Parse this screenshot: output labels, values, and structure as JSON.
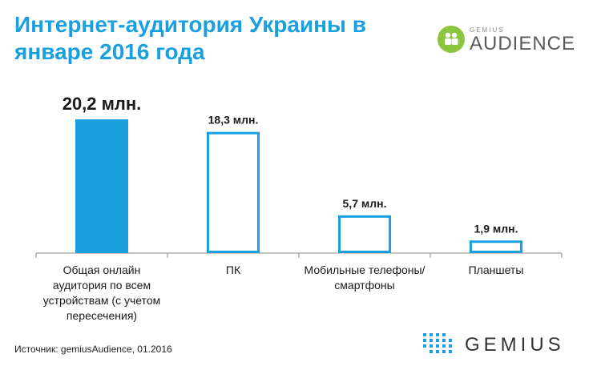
{
  "title": "Интернет-аудитория Украины в январе 2016 года",
  "logo_audience": {
    "small_text": "GEMIUS",
    "big_text": "AUDIENCE",
    "brand_color": "#8cc63f"
  },
  "source": "Источник: gemiusAudience, 01.2016",
  "logo_gemius": {
    "text": "GEMIUS",
    "dot_color": "#1aa0e0"
  },
  "colors": {
    "accent": "#1aa0e0",
    "axis": "#888888",
    "text": "#1a1a1a"
  },
  "chart_data": {
    "type": "bar",
    "title": "",
    "xlabel": "",
    "ylabel": "",
    "unit": "млн.",
    "ylim": [
      0,
      20.2
    ],
    "grid": false,
    "categories": [
      [
        "Общая онлайн",
        "аудитория по всем",
        "устройствам (с учетом",
        "пересечения)"
      ],
      [
        "ПК"
      ],
      [
        "Мобильные телефоны/",
        "смартфоны"
      ],
      [
        "Планшеты"
      ]
    ],
    "values": [
      20.2,
      18.3,
      5.7,
      1.9
    ],
    "data_labels": [
      "20,2 млн.",
      "18,3 млн.",
      "5,7 млн.",
      "1,9 млн."
    ],
    "filled": [
      true,
      false,
      false,
      false
    ]
  }
}
